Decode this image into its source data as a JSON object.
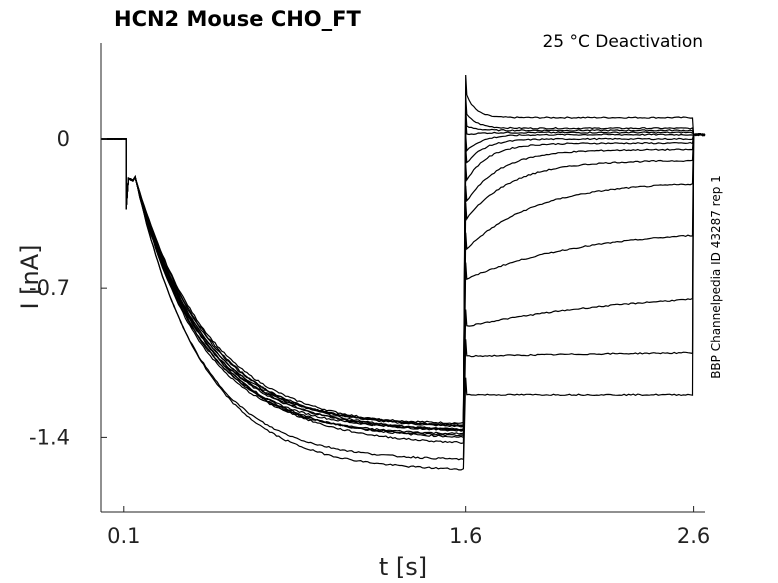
{
  "chart_data": {
    "type": "line",
    "title": "HCN2  Mouse  CHO_FT",
    "annotation": "25 °C  Deactivation",
    "side_label": "BBP Channelpedia ID 43287 rep 1",
    "xlabel": "t [s]",
    "ylabel": "I [nA]",
    "x_ticks": [
      {
        "value": 0.1,
        "label": "0.1"
      },
      {
        "value": 1.6,
        "label": "1.6"
      },
      {
        "value": 2.6,
        "label": "2.6"
      }
    ],
    "y_ticks": [
      {
        "value": 0,
        "label": "0"
      },
      {
        "value": -0.7,
        "label": "-0.7"
      },
      {
        "value": -1.4,
        "label": "-1.4"
      }
    ],
    "xlim": [
      0.0,
      2.65
    ],
    "ylim": [
      -1.75,
      0.45
    ],
    "line_color": "#000000",
    "grid": false,
    "legend": "none",
    "protocol": {
      "prepulse_end": 0.11,
      "step_end": 1.6,
      "tail_end": 2.6,
      "act_tau": 0.28,
      "initial_current": -0.18
    },
    "series": [
      {
        "steady": -1.34,
        "tail_initial": 0.22,
        "tail_final": 0.1,
        "tail_tau": 0.04
      },
      {
        "steady": -1.35,
        "tail_initial": 0.12,
        "tail_final": 0.05,
        "tail_tau": 0.05
      },
      {
        "steady": -1.36,
        "tail_initial": 0.06,
        "tail_final": 0.04,
        "tail_tau": 0.05
      },
      {
        "steady": -1.36,
        "tail_initial": 0.02,
        "tail_final": 0.03,
        "tail_tau": 0.06
      },
      {
        "steady": -1.37,
        "tail_initial": -0.06,
        "tail_final": 0.02,
        "tail_tau": 0.07
      },
      {
        "steady": -1.37,
        "tail_initial": -0.12,
        "tail_final": 0.0,
        "tail_tau": 0.08
      },
      {
        "steady": -1.38,
        "tail_initial": -0.2,
        "tail_final": -0.02,
        "tail_tau": 0.1
      },
      {
        "steady": -1.38,
        "tail_initial": -0.3,
        "tail_final": -0.05,
        "tail_tau": 0.15
      },
      {
        "steady": -1.39,
        "tail_initial": -0.38,
        "tail_final": -0.1,
        "tail_tau": 0.2
      },
      {
        "steady": -1.4,
        "tail_initial": -0.52,
        "tail_final": -0.2,
        "tail_tau": 0.3
      },
      {
        "steady": -1.41,
        "tail_initial": -0.66,
        "tail_final": -0.42,
        "tail_tau": 0.5
      },
      {
        "steady": -1.44,
        "tail_initial": -0.88,
        "tail_final": -0.7,
        "tail_tau": 0.8
      },
      {
        "steady": -1.51,
        "tail_initial": -1.02,
        "tail_final": -0.99,
        "tail_tau": 1.2
      },
      {
        "steady": -1.56,
        "tail_initial": -1.2,
        "tail_final": -1.2,
        "tail_tau": 1.5
      }
    ]
  }
}
